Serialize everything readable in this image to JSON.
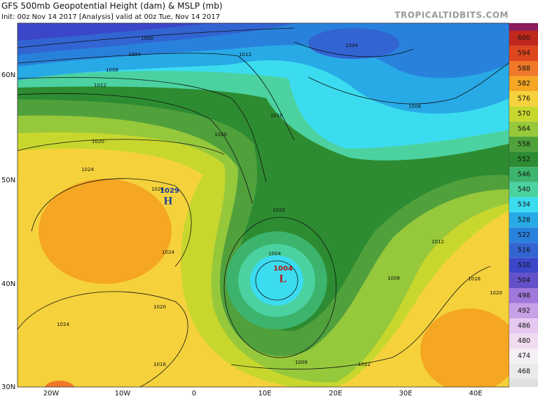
{
  "header": {
    "title": "GFS 500mb Geopotential Height (dam) & MSLP (mb)",
    "subtitle": "Init: 00z Nov 14 2017   [Analysis]   valid at 00z Tue, Nov 14 2017",
    "site": "TROPICALTIDBITS.COM"
  },
  "colorbar": {
    "labels": [
      600,
      594,
      588,
      582,
      576,
      570,
      564,
      558,
      552,
      546,
      540,
      534,
      528,
      522,
      516,
      510,
      504,
      498,
      492,
      486,
      480,
      474,
      468
    ],
    "colors": [
      "#c0281e",
      "#e0461e",
      "#f07828",
      "#f5a623",
      "#f5d23c",
      "#c8d72d",
      "#96c83c",
      "#50a03c",
      "#2d8c32",
      "#3cb46e",
      "#4bd2a0",
      "#3cdcf0",
      "#28aae6",
      "#2882dc",
      "#3264d2",
      "#3c46c8",
      "#6450c8",
      "#a078dc",
      "#c8a0e6",
      "#e6c8f0",
      "#f0dcf0",
      "#f5f0f5",
      "#ebebeb"
    ]
  },
  "map": {
    "lat_labels": [
      "60N",
      "50N",
      "40N",
      "30N"
    ],
    "lon_labels": [
      "20W",
      "10W",
      "0",
      "10E",
      "20E",
      "30E",
      "40E"
    ],
    "contour_labels": [
      "1000",
      "1004",
      "1008",
      "1012",
      "1012",
      "1016",
      "1020",
      "1020",
      "1024",
      "1028",
      "1024",
      "1020",
      "1024",
      "1016",
      "1012",
      "1008",
      "1012",
      "1016",
      "1020",
      "1008",
      "1004",
      "1008",
      "1020",
      "1004"
    ],
    "high": {
      "pressure": "1029",
      "letter": "H"
    },
    "low": {
      "pressure": "1004",
      "letter": "L"
    }
  }
}
